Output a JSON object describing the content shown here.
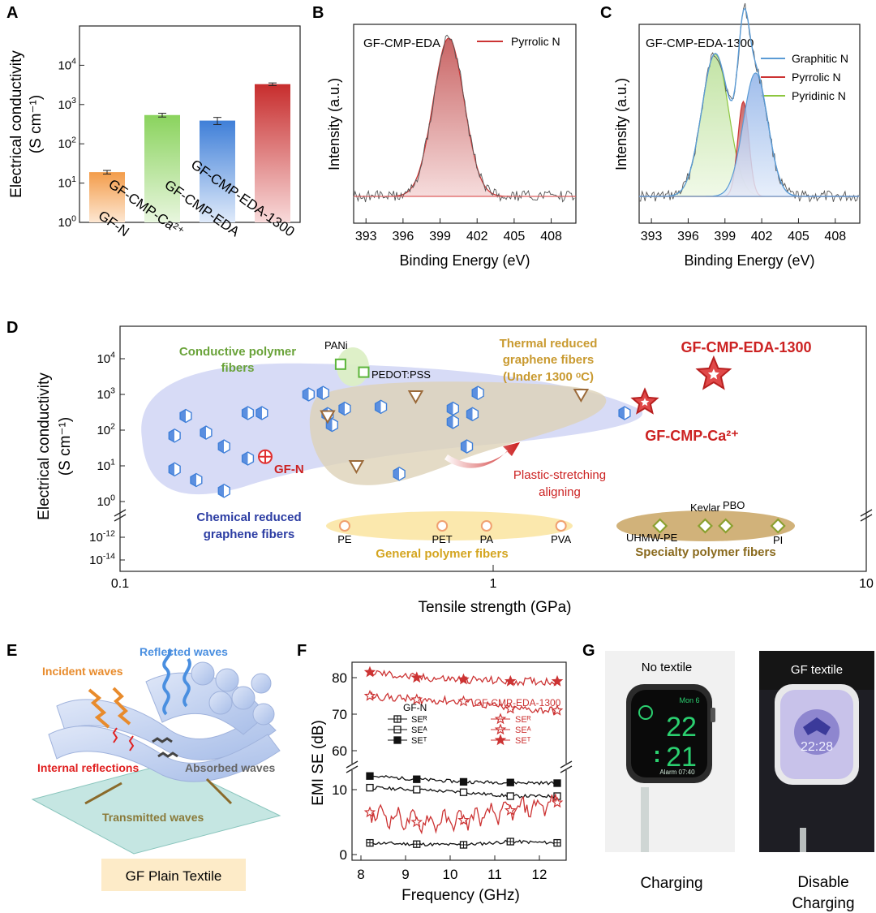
{
  "panels": {
    "A": "A",
    "B": "B",
    "C": "C",
    "D": "D",
    "E": "E",
    "F": "F",
    "G": "G"
  },
  "chart_data": [
    {
      "id": "A",
      "type": "bar",
      "yscale": "log",
      "ylabel": "Electrical conductivity",
      "yunit": "(S cm⁻¹)",
      "ylim": [
        1,
        100000
      ],
      "yticks": [
        {
          "e": "0",
          "v": 1
        },
        {
          "e": "1",
          "v": 10
        },
        {
          "e": "2",
          "v": 100
        },
        {
          "e": "3",
          "v": 1000
        },
        {
          "e": "4",
          "v": 10000
        }
      ],
      "categories": [
        "GF-N",
        "GF-CMP-Ca²⁺",
        "GF-CMP-EDA",
        "GF-CMP-EDA-1300"
      ],
      "values": [
        19,
        540,
        390,
        3300
      ],
      "errors": [
        2,
        60,
        80,
        250
      ],
      "colors": [
        "#f2a25c",
        "#9ad86a",
        "#5a8fd8",
        "#cc3333"
      ]
    },
    {
      "id": "B",
      "type": "line",
      "title": "GF-CMP-EDA",
      "legend": [
        "Pyrrolic N"
      ],
      "xlabel": "Binding Energy (eV)",
      "ylabel": "Intensity (a.u.)",
      "xticks": [
        393,
        396,
        399,
        402,
        405,
        408
      ],
      "xlim": [
        392,
        410
      ],
      "peaks": [
        {
          "name": "Pyrrolic N",
          "center": 399.7,
          "height": 1.0,
          "color": "#cc3333"
        }
      ]
    },
    {
      "id": "C",
      "type": "line",
      "title": "GF-CMP-EDA-1300",
      "legend": [
        "Graphitic N",
        "Pyrrolic N",
        "Pyridinic N"
      ],
      "legend_colors": [
        "#5b9bd5",
        "#cc3333",
        "#8dc63f"
      ],
      "xlabel": "Binding Energy (eV)",
      "ylabel": "Intensity (a.u.)",
      "xticks": [
        393,
        396,
        399,
        402,
        405,
        408
      ],
      "xlim": [
        392,
        410
      ],
      "peaks": [
        {
          "name": "Pyridinic N",
          "center": 398.2,
          "height": 0.9,
          "color": "#8dc63f"
        },
        {
          "name": "Pyrrolic N",
          "center": 400.5,
          "height": 0.6,
          "color": "#cc3333"
        },
        {
          "name": "Graphitic N",
          "center": 401.5,
          "height": 0.78,
          "color": "#5b9bd5"
        }
      ]
    },
    {
      "id": "D",
      "type": "scatter",
      "xscale": "log",
      "yscale": "log",
      "xlabel": "Tensile strength (GPa)",
      "ylabel": "Electrical conductivity",
      "yunit": "(S cm⁻¹)",
      "xticks": [
        "0.1",
        "1",
        "10"
      ],
      "yticks_top": [
        {
          "e": "4",
          "v": 4
        },
        {
          "e": "3",
          "v": 3
        },
        {
          "e": "2",
          "v": 2
        },
        {
          "e": "1",
          "v": 1
        },
        {
          "e": "0",
          "v": 0
        }
      ],
      "yticks_bottom": [
        {
          "e": "-12",
          "v": -12
        },
        {
          "e": "-14",
          "v": -14
        }
      ],
      "chemical_reduced": [
        [
          0.15,
          250
        ],
        [
          0.14,
          70
        ],
        [
          0.17,
          85
        ],
        [
          0.19,
          35
        ],
        [
          0.14,
          8
        ],
        [
          0.16,
          4
        ],
        [
          0.19,
          2
        ],
        [
          0.22,
          300
        ],
        [
          0.24,
          300
        ],
        [
          0.22,
          16
        ],
        [
          0.32,
          1000
        ],
        [
          0.35,
          1100
        ],
        [
          0.36,
          280
        ],
        [
          0.4,
          400
        ],
        [
          0.37,
          140
        ],
        [
          0.5,
          450
        ],
        [
          0.56,
          6
        ],
        [
          0.78,
          400
        ],
        [
          0.78,
          170
        ],
        [
          0.88,
          280
        ],
        [
          0.91,
          1100
        ],
        [
          0.85,
          35
        ],
        [
          2.25,
          300
        ]
      ],
      "thermal_reduced": [
        [
          0.36,
          250
        ],
        [
          0.43,
          10
        ],
        [
          0.62,
          900
        ],
        [
          1.72,
          1000
        ]
      ],
      "conductive_polymer": [
        [
          0.39,
          7000
        ],
        [
          0.45,
          4200
        ]
      ],
      "general_polymer": [
        [
          0.4,
          "PE"
        ],
        [
          0.73,
          "PET"
        ],
        [
          0.96,
          "PA"
        ],
        [
          1.52,
          "PVA"
        ]
      ],
      "specialty_polymer": [
        [
          2.8,
          "UHMW-PE"
        ],
        [
          3.7,
          "Kevlar"
        ],
        [
          4.2,
          "PBO"
        ],
        [
          5.8,
          "PI"
        ]
      ],
      "gf_n": [
        0.245,
        18
      ],
      "gf_cmp_ca": [
        2.55,
        600
      ],
      "gf_cmp_eda_1300": [
        3.9,
        3600
      ],
      "labels": {
        "conductive": "Conductive polymer\nfibers",
        "pani": "PANi",
        "pedot": "PEDOT:PSS",
        "thermal": "Thermal reduced\ngraphene fibers\n(Under 1300 ᵒC)",
        "gf1300": "GF-CMP-EDA-1300",
        "gfca": "GF-CMP-Ca²⁺",
        "gfn": "GF-N",
        "plastic": "Plastic-stretching\naligning",
        "chemical": "Chemical reduced\ngraphene fibers",
        "general": "General polymer fibers",
        "specialty": "Specialty polymer fibers"
      }
    },
    {
      "id": "F",
      "type": "line",
      "xlabel": "Frequency (GHz)",
      "ylabel": "EMI SE (dB)",
      "xticks": [
        8,
        9,
        10,
        11,
        12
      ],
      "xlim": [
        7.8,
        12.6
      ],
      "yticks_top": [
        60,
        70,
        80
      ],
      "yticks_bottom": [
        0,
        10
      ],
      "legend_left_title": "GF-N",
      "legend_right_title": "GF-CMP-EDA-1300",
      "legend_items": [
        "SEᴿ",
        "SEᴬ",
        "SEᵀ"
      ],
      "series": [
        {
          "name": "GF-N SE_R",
          "values": [
            [
              8.2,
              1.8
            ],
            [
              9.25,
              1.6
            ],
            [
              10.3,
              1.5
            ],
            [
              11.35,
              2.0
            ],
            [
              12.4,
              1.8
            ]
          ],
          "color": "#111",
          "marker": "crossbox"
        },
        {
          "name": "GF-N SE_A",
          "values": [
            [
              8.2,
              10.3
            ],
            [
              9.25,
              10.0
            ],
            [
              10.3,
              9.6
            ],
            [
              11.35,
              9.0
            ],
            [
              12.4,
              9.0
            ]
          ],
          "color": "#111",
          "marker": "openbox"
        },
        {
          "name": "GF-N SE_T",
          "values": [
            [
              8.2,
              12.1
            ],
            [
              9.25,
              11.6
            ],
            [
              10.3,
              11.2
            ],
            [
              11.35,
              11.1
            ],
            [
              12.4,
              11.0
            ]
          ],
          "color": "#111",
          "marker": "filledbox"
        },
        {
          "name": "GF-CMP-EDA-1300 SE_R",
          "values": [
            [
              8.2,
              6.5
            ],
            [
              9.25,
              5.0
            ],
            [
              10.3,
              5.3
            ],
            [
              11.35,
              6.8
            ],
            [
              12.4,
              8.0
            ]
          ],
          "color": "#cc3333",
          "marker": "crossstar"
        },
        {
          "name": "GF-CMP-EDA-1300 SE_A",
          "values": [
            [
              8.2,
              75
            ],
            [
              9.25,
              74
            ],
            [
              10.3,
              73.5
            ],
            [
              11.35,
              71.5
            ],
            [
              12.4,
              71
            ]
          ],
          "color": "#cc3333",
          "marker": "openstar"
        },
        {
          "name": "GF-CMP-EDA-1300 SE_T",
          "values": [
            [
              8.2,
              81.5
            ],
            [
              9.25,
              80
            ],
            [
              10.3,
              79.5
            ],
            [
              11.35,
              79
            ],
            [
              12.4,
              79
            ]
          ],
          "color": "#cc3333",
          "marker": "filledstar"
        }
      ]
    }
  ],
  "panelE": {
    "incident": "Incident waves",
    "reflected": "Reflected waves",
    "internal": "Internal reflections",
    "absorbed": "Absorbed waves",
    "transmitted": "Transmitted waves",
    "box": "GF Plain Textile"
  },
  "panelG": {
    "photo1_title": "No textile",
    "photo2_title": "GF textile",
    "watch1_date": "Mon 6",
    "watch1_hour": "22",
    "watch1_min": "21",
    "watch1_alarm": "Alarm 07:40",
    "watch2_time": "22:28",
    "caption1": "Charging",
    "caption2a": "Disable",
    "caption2b": "Charging"
  }
}
